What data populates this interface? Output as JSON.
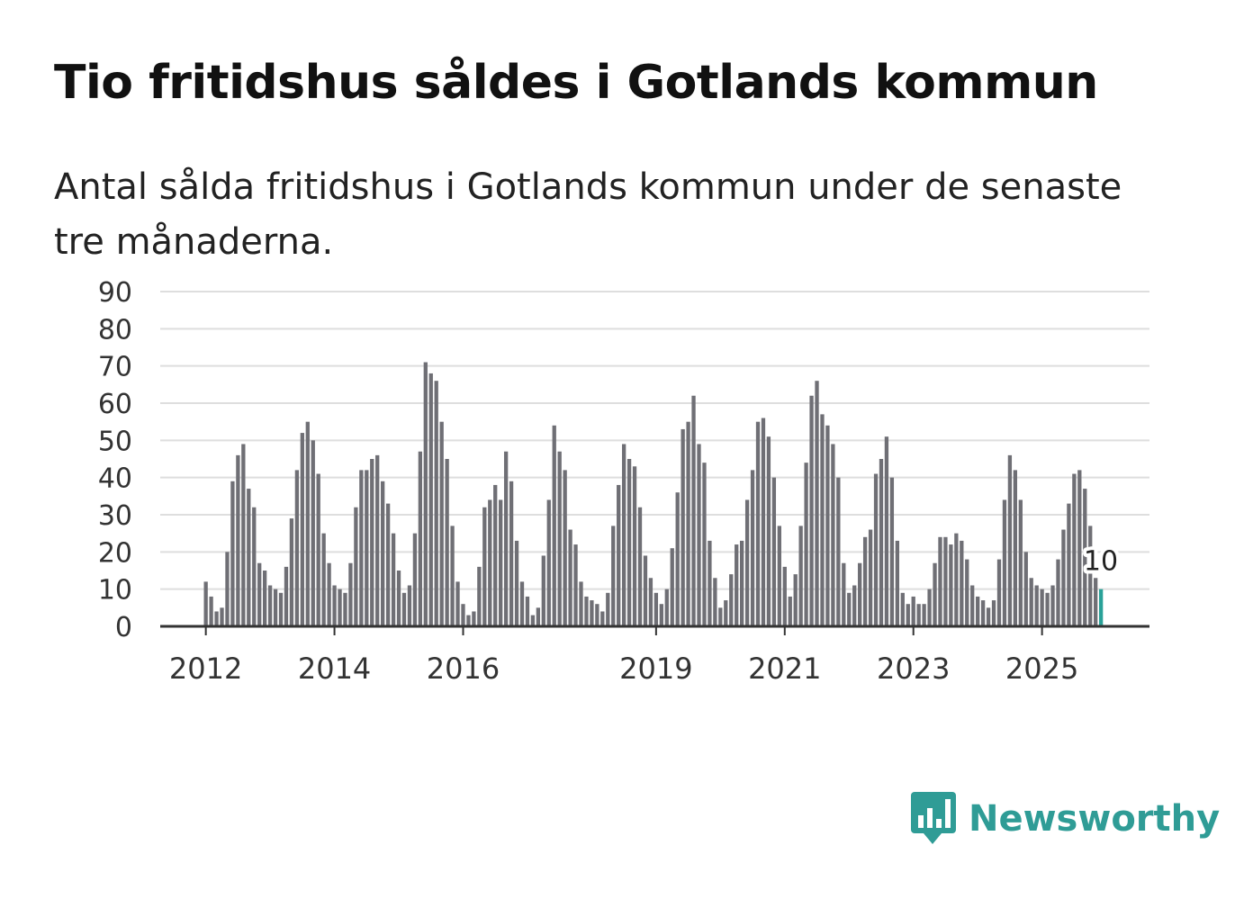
{
  "title": "Tio fritidshus såldes i Gotlands kommun",
  "subtitle": "Antal sålda fritidshus i Gotlands kommun under de senaste tre månaderna.",
  "brand": {
    "name": "Newsworthy",
    "icon": "newsworthy-logo-icon",
    "color": "#2f9c96"
  },
  "colors": {
    "bar": "#6f6f75",
    "highlight": "#2aa198",
    "grid": "#dedede",
    "axis": "#333333"
  },
  "chart_data": {
    "type": "bar",
    "title": "Tio fritidshus såldes i Gotlands kommun",
    "xlabel": "",
    "ylabel": "",
    "ylim": [
      0,
      90
    ],
    "yticks": [
      "0",
      "10",
      "20",
      "30",
      "40",
      "50",
      "60",
      "70",
      "80",
      "90"
    ],
    "xticks": [
      {
        "label": "2012",
        "index": 0
      },
      {
        "label": "2014",
        "index": 24
      },
      {
        "label": "2016",
        "index": 48
      },
      {
        "label": "2019",
        "index": 84
      },
      {
        "label": "2021",
        "index": 108
      },
      {
        "label": "2023",
        "index": 132
      },
      {
        "label": "2025",
        "index": 156
      }
    ],
    "start": "2012-01",
    "frequency": "monthly",
    "values": [
      12,
      8,
      4,
      5,
      20,
      39,
      46,
      49,
      37,
      32,
      17,
      15,
      11,
      10,
      9,
      16,
      29,
      42,
      52,
      55,
      50,
      41,
      25,
      17,
      11,
      10,
      9,
      17,
      32,
      42,
      42,
      45,
      46,
      39,
      33,
      25,
      15,
      9,
      11,
      25,
      47,
      71,
      68,
      66,
      55,
      45,
      27,
      12,
      6,
      3,
      4,
      16,
      32,
      34,
      38,
      34,
      47,
      39,
      23,
      12,
      8,
      3,
      5,
      19,
      34,
      54,
      47,
      42,
      26,
      22,
      12,
      8,
      7,
      6,
      4,
      9,
      27,
      38,
      49,
      45,
      43,
      32,
      19,
      13,
      9,
      6,
      10,
      21,
      36,
      53,
      55,
      62,
      49,
      44,
      23,
      13,
      5,
      7,
      14,
      22,
      23,
      34,
      42,
      55,
      56,
      51,
      40,
      27,
      16,
      8,
      14,
      27,
      44,
      62,
      66,
      57,
      54,
      49,
      40,
      17,
      9,
      11,
      17,
      24,
      26,
      41,
      45,
      51,
      40,
      23,
      9,
      6,
      8,
      6,
      6,
      10,
      17,
      24,
      24,
      22,
      25,
      23,
      18,
      11,
      8,
      7,
      5,
      7,
      18,
      34,
      46,
      42,
      34,
      20,
      13,
      11,
      10,
      9,
      11,
      18,
      26,
      33,
      41,
      42,
      37,
      27,
      13,
      10
    ],
    "highlight": {
      "index": 167,
      "value": 10,
      "label": "10"
    }
  }
}
